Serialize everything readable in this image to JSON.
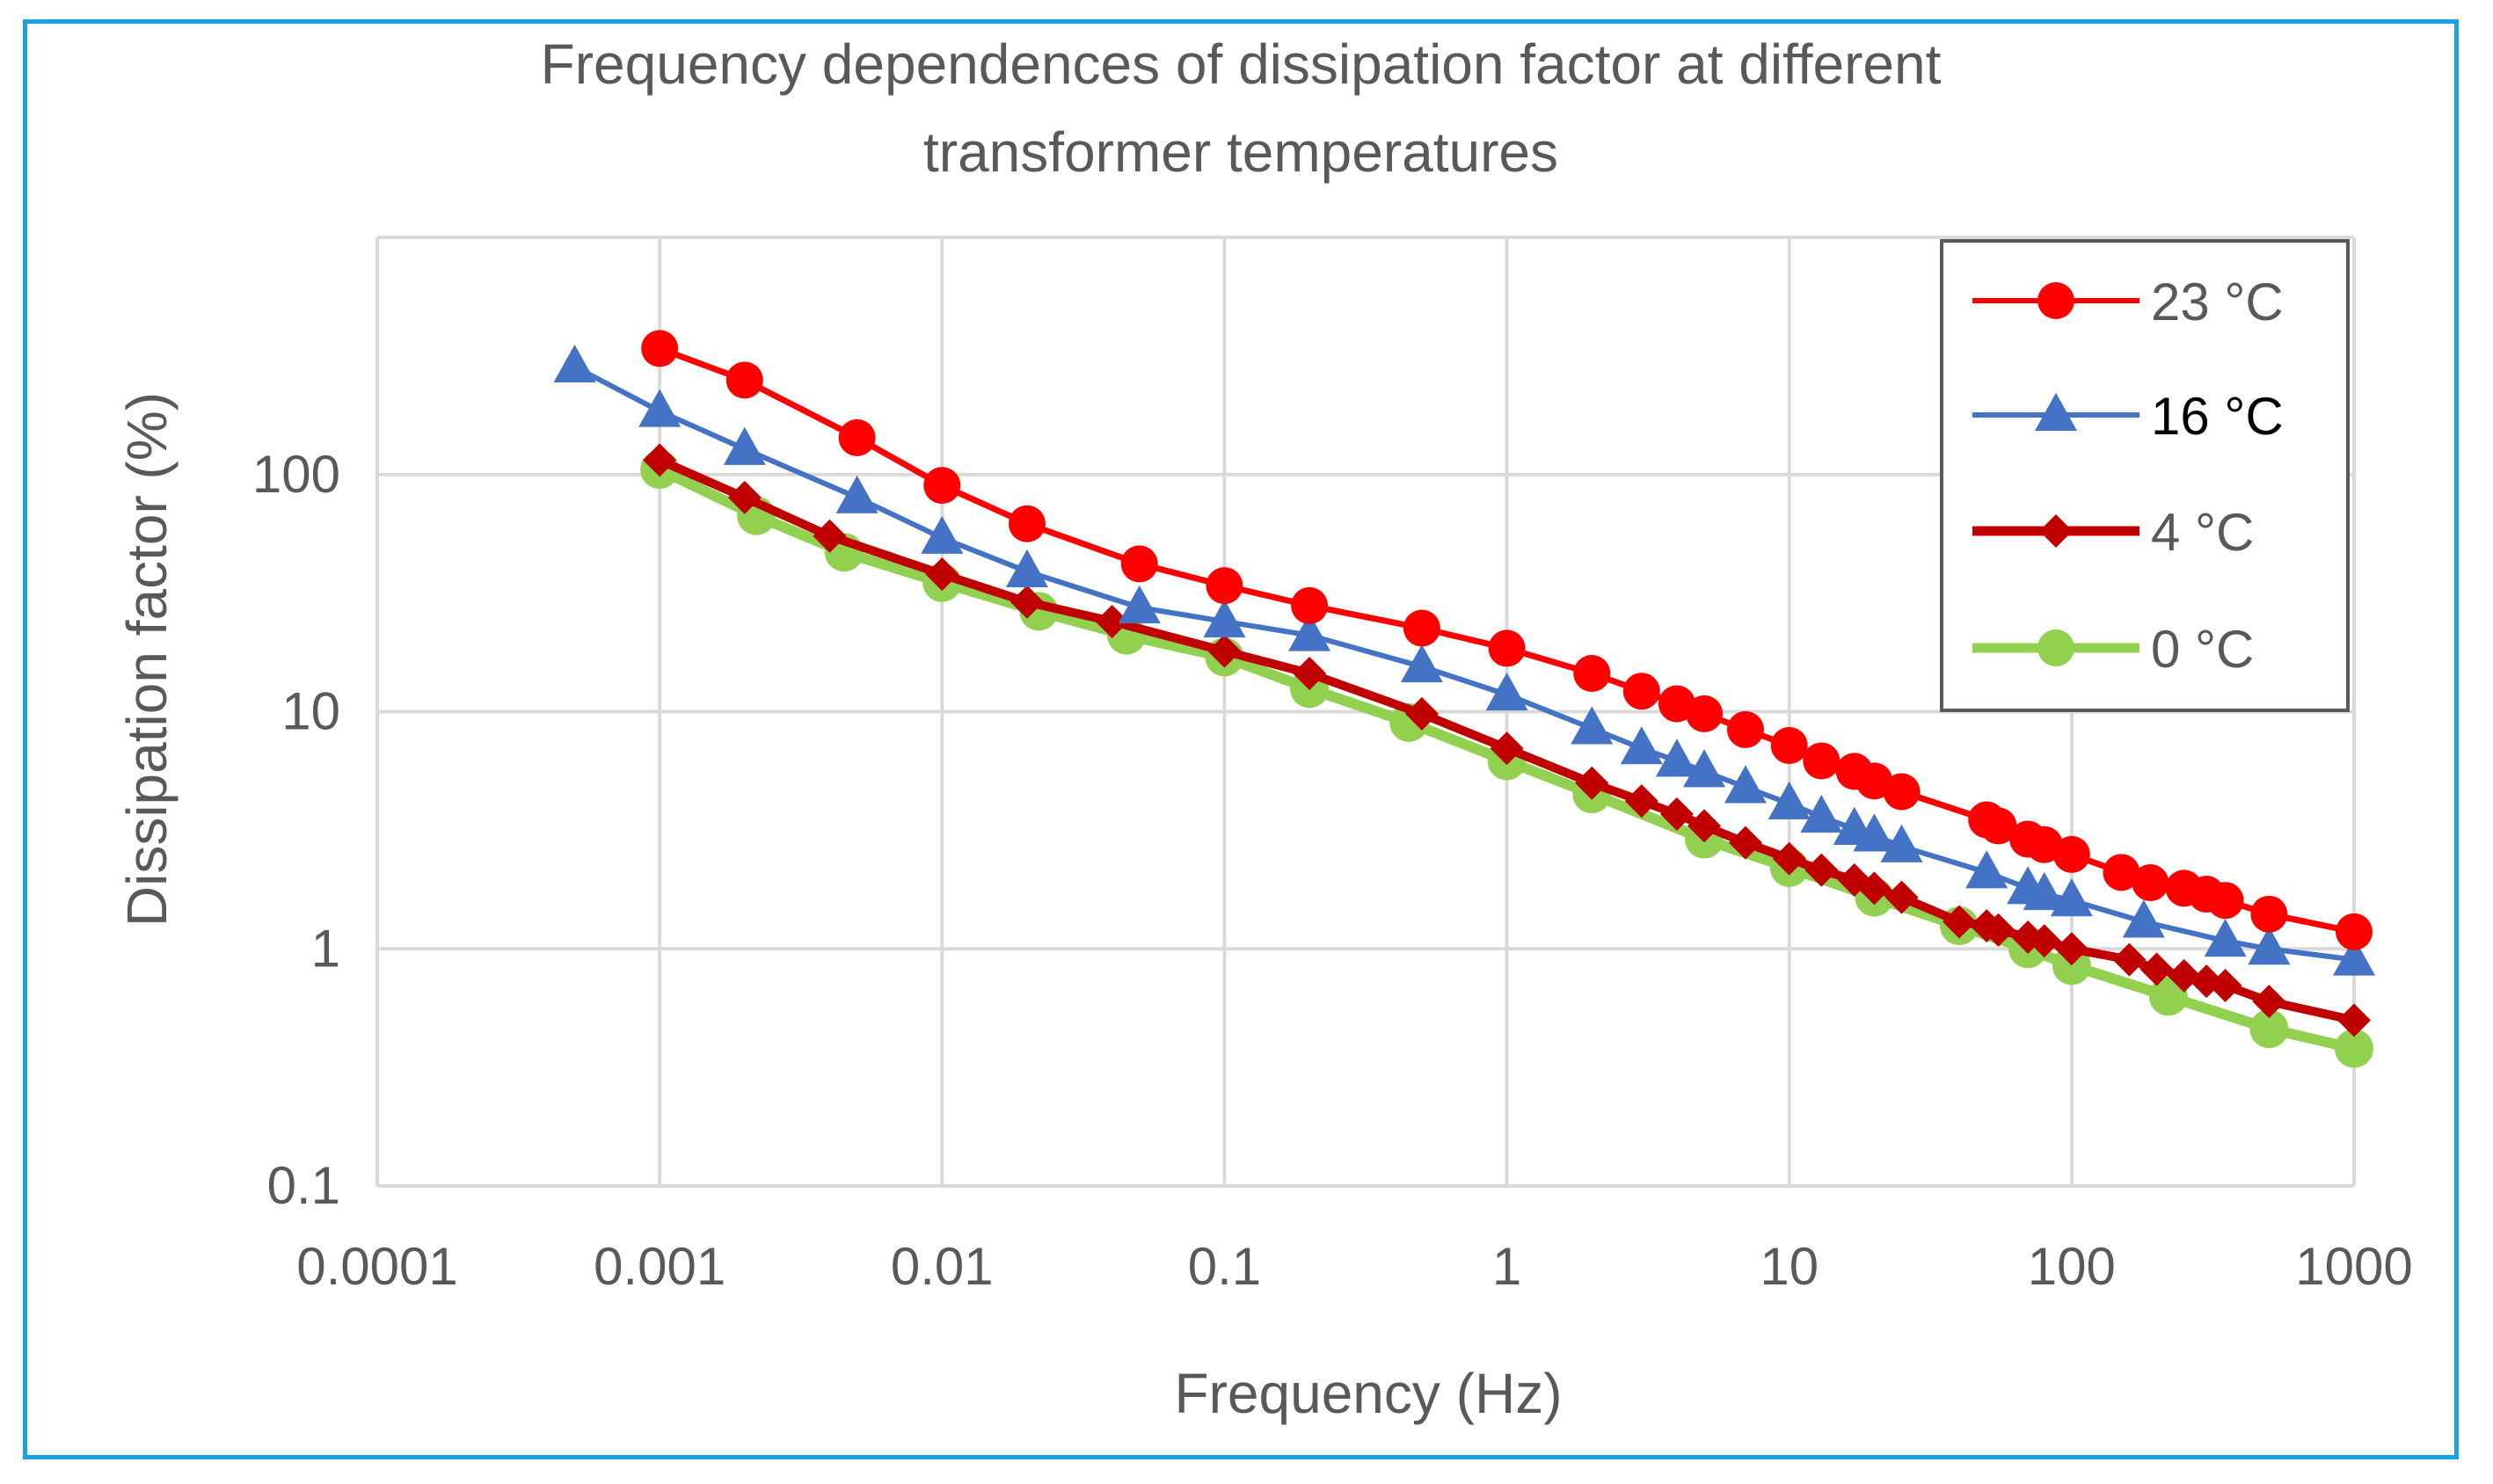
{
  "colors": {
    "frame": "#1BA1E2",
    "grid": "#D9D9D9",
    "text": "#595959",
    "legend_border": "#595959"
  },
  "chart_data": {
    "type": "line",
    "title": "Frequency dependences of dissipation factor at different transformer temperatures",
    "title_lines": [
      "Frequency dependences of dissipation factor at different",
      "transformer temperatures"
    ],
    "xlabel": "Frequency (Hz)",
    "ylabel": "Dissipation factor (%)",
    "xscale": "log",
    "yscale": "log",
    "xlim": [
      0.0001,
      1000
    ],
    "ylim": [
      0.1,
      1000
    ],
    "x_ticks": [
      0.0001,
      0.001,
      0.01,
      0.1,
      1,
      10,
      100,
      1000
    ],
    "x_tick_labels": [
      "0.0001",
      "0.001",
      "0.01",
      "0.1",
      "1",
      "10",
      "100",
      "1000"
    ],
    "y_ticks": [
      0.1,
      1,
      10,
      100
    ],
    "y_tick_labels": [
      "0.1",
      "1",
      "10",
      "100"
    ],
    "grid": true,
    "legend_position": "top-right",
    "series": [
      {
        "name": "23 °C",
        "color": "#FF0000",
        "marker": "circle",
        "x": [
          0.001,
          0.002,
          0.005,
          0.01,
          0.02,
          0.05,
          0.1,
          0.2,
          0.5,
          1,
          2,
          3,
          4,
          5,
          7,
          10,
          13,
          17,
          20,
          25,
          50,
          55,
          70,
          80,
          100,
          150,
          190,
          250,
          300,
          350,
          500,
          1000
        ],
        "values": [
          340,
          250,
          143,
          90,
          62,
          42,
          34,
          28,
          22.5,
          18.5,
          14.5,
          12.2,
          10.8,
          9.8,
          8.4,
          7.2,
          6.2,
          5.6,
          5.1,
          4.6,
          3.5,
          3.3,
          2.9,
          2.75,
          2.5,
          2.1,
          1.9,
          1.8,
          1.7,
          1.6,
          1.4,
          1.18
        ]
      },
      {
        "name": "16 °C",
        "color": "#4472C4",
        "marker": "triangle",
        "x": [
          0.0005,
          0.001,
          0.002,
          0.005,
          0.01,
          0.02,
          0.05,
          0.1,
          0.2,
          0.5,
          1,
          2,
          3,
          4,
          5,
          7,
          10,
          13,
          17,
          20,
          25,
          50,
          70,
          80,
          100,
          180,
          350,
          500,
          1000
        ],
        "values": [
          285,
          185,
          128,
          80,
          54,
          39,
          27.5,
          24,
          21,
          15.5,
          11.8,
          8.5,
          7,
          6.2,
          5.6,
          4.8,
          4.1,
          3.6,
          3.2,
          3,
          2.7,
          2.1,
          1.8,
          1.7,
          1.6,
          1.3,
          1.08,
          1,
          0.9
        ]
      },
      {
        "name": "4 °C",
        "color": "#C00000",
        "marker": "diamond",
        "x": [
          0.001,
          0.002,
          0.004,
          0.01,
          0.02,
          0.04,
          0.1,
          0.2,
          0.5,
          1,
          2,
          3,
          4,
          5,
          7,
          10,
          13,
          17,
          20,
          25,
          40,
          50,
          55,
          70,
          80,
          100,
          160,
          200,
          250,
          300,
          350,
          500,
          1000
        ],
        "values": [
          115,
          80,
          55,
          38,
          29,
          24,
          18,
          14.5,
          9.8,
          7,
          5,
          4.2,
          3.7,
          3.3,
          2.8,
          2.4,
          2.15,
          1.95,
          1.8,
          1.65,
          1.3,
          1.25,
          1.2,
          1.12,
          1.08,
          1,
          0.9,
          0.82,
          0.77,
          0.73,
          0.7,
          0.6,
          0.5
        ]
      },
      {
        "name": "0 °C",
        "color": "#92D050",
        "marker": "circle",
        "x": [
          0.001,
          0.0022,
          0.0045,
          0.01,
          0.022,
          0.045,
          0.1,
          0.2,
          0.45,
          1,
          2,
          5,
          10,
          20,
          40,
          70,
          100,
          220,
          500,
          1000
        ],
        "values": [
          105,
          67,
          47,
          35,
          26.5,
          21,
          17,
          12.5,
          9,
          6.2,
          4.5,
          2.9,
          2.2,
          1.65,
          1.25,
          1,
          0.85,
          0.63,
          0.46,
          0.38
        ]
      }
    ]
  }
}
